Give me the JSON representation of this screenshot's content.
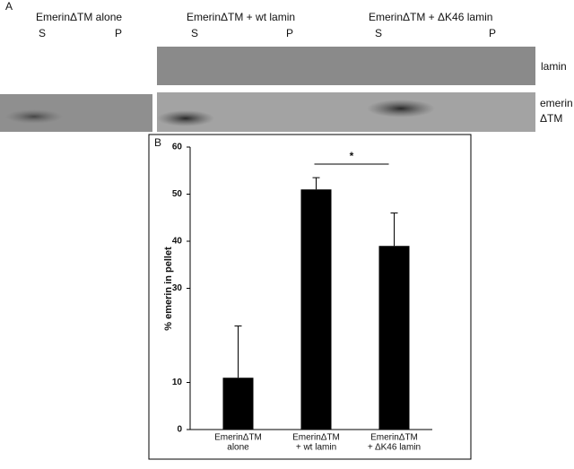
{
  "panel_a": {
    "label": "A",
    "lanes": [
      {
        "title": "EmerinΔTM alone",
        "s": "S",
        "p": "P"
      },
      {
        "title": "EmerinΔTM + wt lamin",
        "s": "S",
        "p": "P"
      },
      {
        "title": "EmerinΔTM + ΔK46 lamin",
        "s": "S",
        "p": "P"
      }
    ],
    "row_labels": {
      "lamin": "lamin",
      "emerin": [
        "emerin",
        "ΔTM"
      ]
    }
  },
  "chart_data": {
    "type": "bar",
    "panel_label": "B",
    "y_label": "% emerin in pellet",
    "categories": [
      [
        "EmerinΔTM",
        "alone"
      ],
      [
        "EmerinΔTM",
        "+ wt lamin"
      ],
      [
        "EmerinΔTM",
        "+ ΔK46 lamin"
      ]
    ],
    "values": [
      11,
      51,
      39
    ],
    "errors": [
      11,
      2.5,
      7
    ],
    "color": "#000000",
    "ylim": [
      0,
      60
    ],
    "yticks": [
      0,
      10,
      30,
      40,
      50,
      60
    ],
    "annotations": [
      {
        "text": "*",
        "from": 1,
        "to": 2
      }
    ]
  }
}
